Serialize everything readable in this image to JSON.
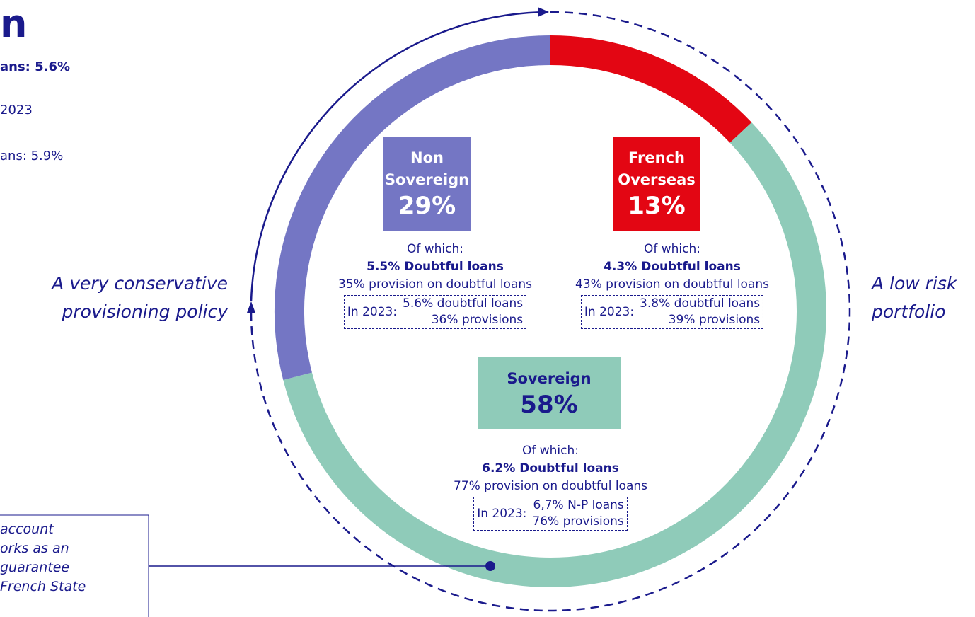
{
  "page_text": {
    "title_fragment": "n",
    "line_1": "ans: 5.6%",
    "line_2": "2023",
    "line_3": "ans: 5.9%",
    "note_lines": [
      "account",
      "orks as an",
      "guarantee",
      "French State"
    ]
  },
  "chart_data": {
    "type": "donut",
    "categories": [
      "French Overseas",
      "Sovereign",
      "Non Sovereign"
    ],
    "values": [
      13,
      58,
      29
    ],
    "value_labels": [
      "13%",
      "58%",
      "29%"
    ],
    "colors": [
      "#e30613",
      "#8fcbb9",
      "#7476c4"
    ],
    "left_annotation": [
      "A very conservative",
      "provisioning policy"
    ],
    "right_annotation": [
      "A low risk",
      "portfolio"
    ],
    "details": [
      {
        "of_which": "Of which:",
        "doubtful": "4.3% Doubtful loans",
        "provision": "43% provision on doubtful loans",
        "prior_label": "In 2023:",
        "prior_1": "3.8% doubtful loans",
        "prior_2": "39% provisions"
      },
      {
        "of_which": "Of which:",
        "doubtful": "6.2% Doubtful loans",
        "provision": "77% provision on doubtful loans",
        "prior_label": "In 2023:",
        "prior_1": "6,7% N-P loans",
        "prior_2": "76% provisions"
      },
      {
        "of_which": "Of which:",
        "doubtful": "5.5% Doubtful loans",
        "provision": "35% provision on doubtful loans",
        "prior_label": "In 2023:",
        "prior_1": "5.6% doubtful loans",
        "prior_2": "36% provisions"
      }
    ]
  }
}
